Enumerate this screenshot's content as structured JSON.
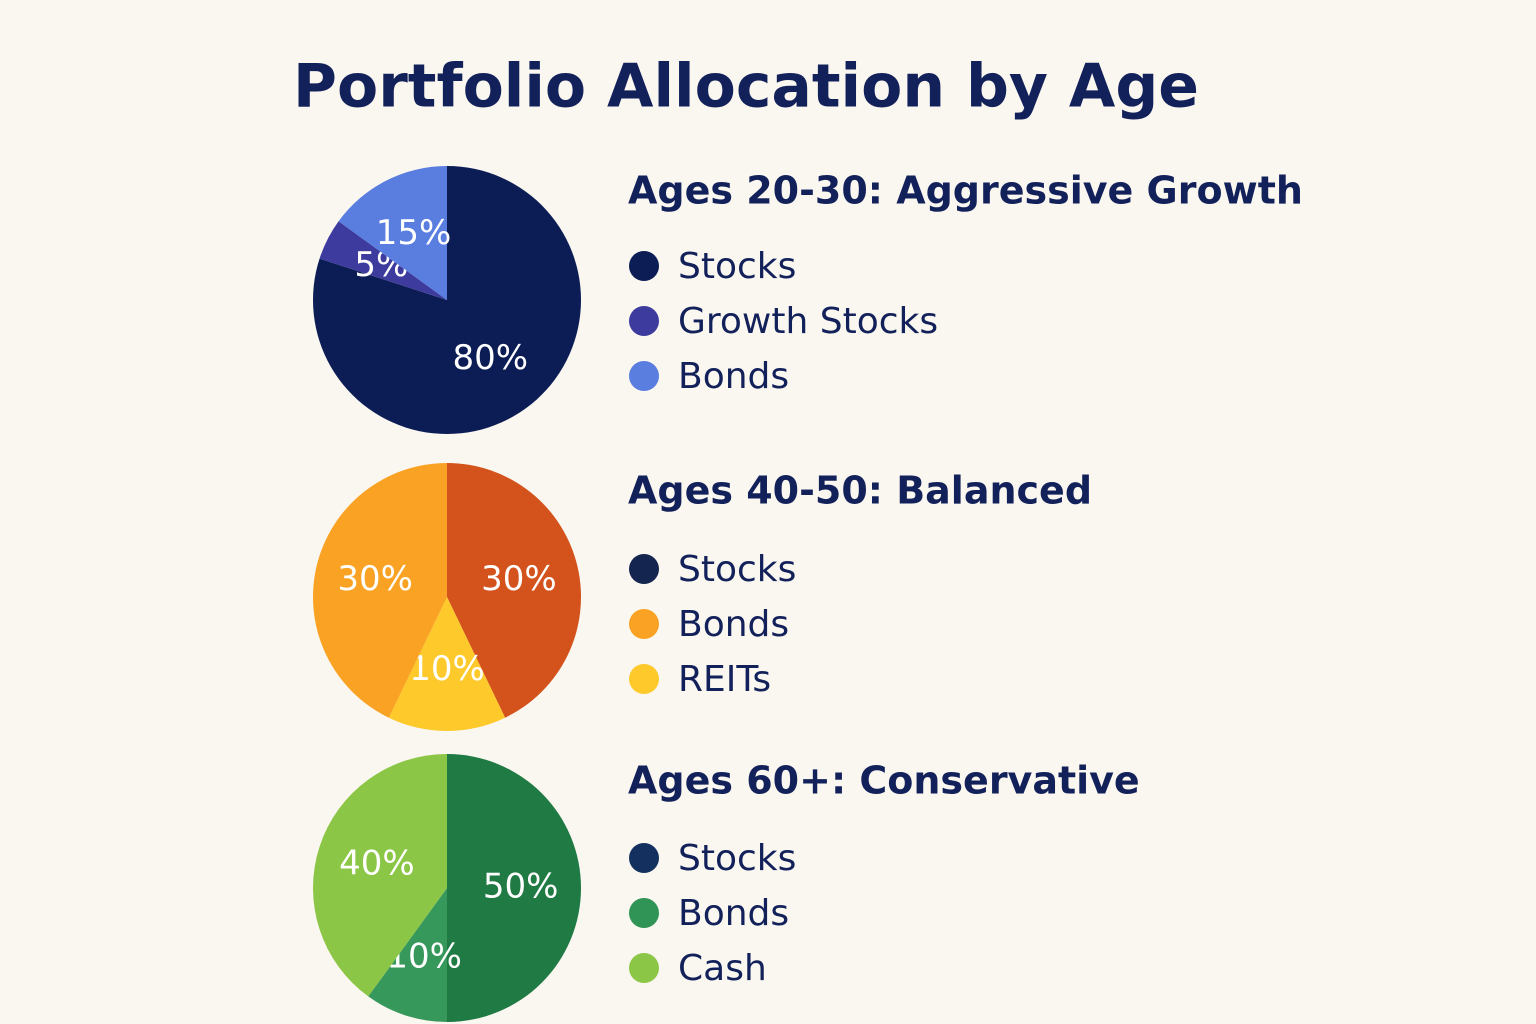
{
  "title": "Portfolio Allocation by Age",
  "chart_data": [
    {
      "type": "pie",
      "title": "Ages 20-30: Aggressive Growth",
      "values": [
        80,
        5,
        15
      ],
      "value_labels": [
        "80%",
        "5%",
        "15%"
      ],
      "colors": [
        "#0c1d56",
        "#3d3b9e",
        "#5a7ee0"
      ],
      "legend": [
        {
          "name": "Stocks",
          "color": "#0c1d56"
        },
        {
          "name": "Growth Stocks",
          "color": "#3d3b9e"
        },
        {
          "name": "Bonds",
          "color": "#5a7ee0"
        }
      ]
    },
    {
      "type": "pie",
      "title": "Ages 40-50: Balanced",
      "values": [
        30,
        10,
        30
      ],
      "value_labels": [
        "30%",
        "10%",
        "30%"
      ],
      "colors": [
        "#d4521b",
        "#fdc92b",
        "#f9a224"
      ],
      "legend": [
        {
          "name": "Stocks",
          "color": "#14264f"
        },
        {
          "name": "Bonds",
          "color": "#f9a224"
        },
        {
          "name": "REITs",
          "color": "#fdc92b"
        }
      ]
    },
    {
      "type": "pie",
      "title": "Ages 60+: Conservative",
      "values": [
        50,
        10,
        40
      ],
      "value_labels": [
        "50%",
        "10%",
        "40%"
      ],
      "colors": [
        "#1f7a43",
        "#36985a",
        "#8cc646"
      ],
      "legend": [
        {
          "name": "Stocks",
          "color": "#14305f"
        },
        {
          "name": "Bonds",
          "color": "#2f9456"
        },
        {
          "name": "Cash",
          "color": "#8cc646"
        }
      ]
    }
  ]
}
